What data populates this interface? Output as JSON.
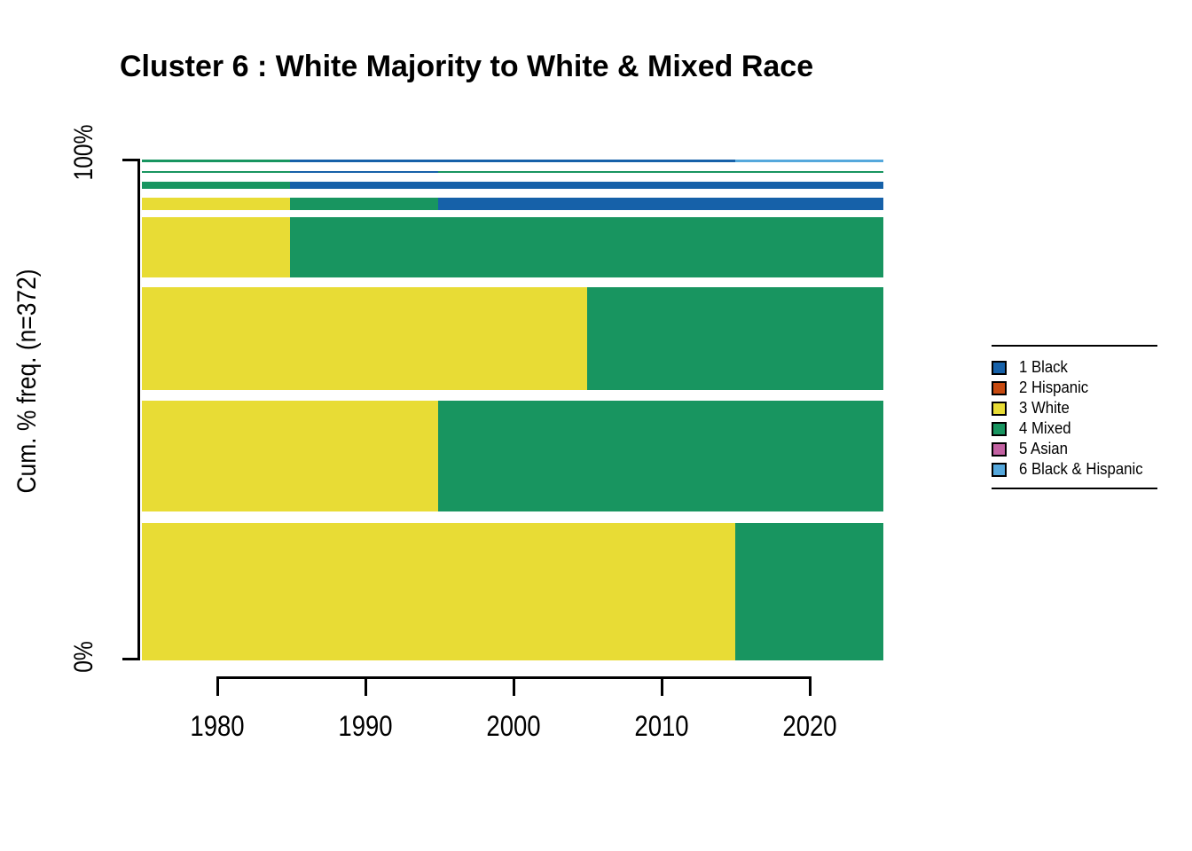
{
  "title": "Cluster 6 : White Majority to White & Mixed Race",
  "y_axis": {
    "label": "Cum. % freq. (n=372)",
    "tick_top": "100%",
    "tick_bottom": "0%"
  },
  "x_axis": {
    "tick_labels": [
      "1980",
      "1990",
      "2000",
      "2010",
      "2020"
    ]
  },
  "legend": {
    "items": [
      {
        "id": 1,
        "label": "1 Black",
        "color": "#1661A9"
      },
      {
        "id": 2,
        "label": "2 Hispanic",
        "color": "#C74A10"
      },
      {
        "id": 3,
        "label": "3 White",
        "color": "#E8DC35"
      },
      {
        "id": 4,
        "label": "4 Mixed",
        "color": "#189560"
      },
      {
        "id": 5,
        "label": "5 Asian",
        "color": "#C361A2"
      },
      {
        "id": 6,
        "label": "6 Black & Hispanic",
        "color": "#55A8DC"
      }
    ]
  },
  "chart_data": {
    "type": "bar",
    "subtype": "sequence-frequency-plot-horizontal-stacked",
    "title": "Cluster 6 : White Majority to White & Mixed Race",
    "xlabel": "",
    "ylabel": "Cum. % freq. (n=372)",
    "n": 372,
    "x_range_years": [
      1975,
      2025
    ],
    "x_ticks": [
      1980,
      1990,
      2000,
      2010,
      2020
    ],
    "y_ticks": [
      "0%",
      "100%"
    ],
    "ylim": [
      0,
      100
    ],
    "grid": false,
    "legend_position": "right",
    "states": [
      {
        "id": 1,
        "label": "1 Black",
        "color": "#1661A9"
      },
      {
        "id": 2,
        "label": "2 Hispanic",
        "color": "#C74A10"
      },
      {
        "id": 3,
        "label": "3 White",
        "color": "#E8DC35"
      },
      {
        "id": 4,
        "label": "4 Mixed",
        "color": "#189560"
      },
      {
        "id": 5,
        "label": "5 Asian",
        "color": "#C361A2"
      },
      {
        "id": 6,
        "label": "6 Black & Hispanic",
        "color": "#55A8DC"
      }
    ],
    "sequences_note": "rows listed top-to-bottom; heights proportional to frequency of each sequence pattern; segments give state per year range",
    "sequences": [
      {
        "rank": 8,
        "freq_pct": 0.4,
        "top_pct": 0.18,
        "height_pct": 0.44,
        "segments": [
          {
            "state": 4,
            "from": 1975,
            "to": 1985
          },
          {
            "state": 1,
            "from": 1985,
            "to": 2015
          },
          {
            "state": 6,
            "from": 2015,
            "to": 2025
          }
        ]
      },
      {
        "rank": 7,
        "freq_pct": 0.5,
        "top_pct": 2.42,
        "height_pct": 0.46,
        "segments": [
          {
            "state": 4,
            "from": 1975,
            "to": 1985
          },
          {
            "state": 1,
            "from": 1985,
            "to": 1995
          },
          {
            "state": 4,
            "from": 1995,
            "to": 2025
          }
        ]
      },
      {
        "rank": 6,
        "freq_pct": 1.5,
        "top_pct": 4.6,
        "height_pct": 1.47,
        "segments": [
          {
            "state": 4,
            "from": 1975,
            "to": 1985
          },
          {
            "state": 1,
            "from": 1985,
            "to": 2025
          }
        ]
      },
      {
        "rank": 5,
        "freq_pct": 2.5,
        "top_pct": 7.73,
        "height_pct": 2.48,
        "segments": [
          {
            "state": 3,
            "from": 1975,
            "to": 1985
          },
          {
            "state": 4,
            "from": 1985,
            "to": 1995
          },
          {
            "state": 1,
            "from": 1995,
            "to": 2025
          }
        ]
      },
      {
        "rank": 4,
        "freq_pct": 12.0,
        "top_pct": 11.68,
        "height_pct": 12.03,
        "segments": [
          {
            "state": 3,
            "from": 1975,
            "to": 1985
          },
          {
            "state": 4,
            "from": 1985,
            "to": 2025
          }
        ]
      },
      {
        "rank": 3,
        "freq_pct": 20.6,
        "top_pct": 25.57,
        "height_pct": 20.62,
        "segments": [
          {
            "state": 3,
            "from": 1975,
            "to": 2005
          },
          {
            "state": 4,
            "from": 2005,
            "to": 2025
          }
        ]
      },
      {
        "rank": 2,
        "freq_pct": 22.0,
        "top_pct": 48.23,
        "height_pct": 22.03,
        "segments": [
          {
            "state": 3,
            "from": 1975,
            "to": 1995
          },
          {
            "state": 4,
            "from": 1995,
            "to": 2025
          }
        ]
      },
      {
        "rank": 1,
        "freq_pct": 27.3,
        "top_pct": 72.57,
        "height_pct": 27.35,
        "segments": [
          {
            "state": 3,
            "from": 1975,
            "to": 2015
          },
          {
            "state": 4,
            "from": 2015,
            "to": 2025
          }
        ]
      }
    ]
  }
}
